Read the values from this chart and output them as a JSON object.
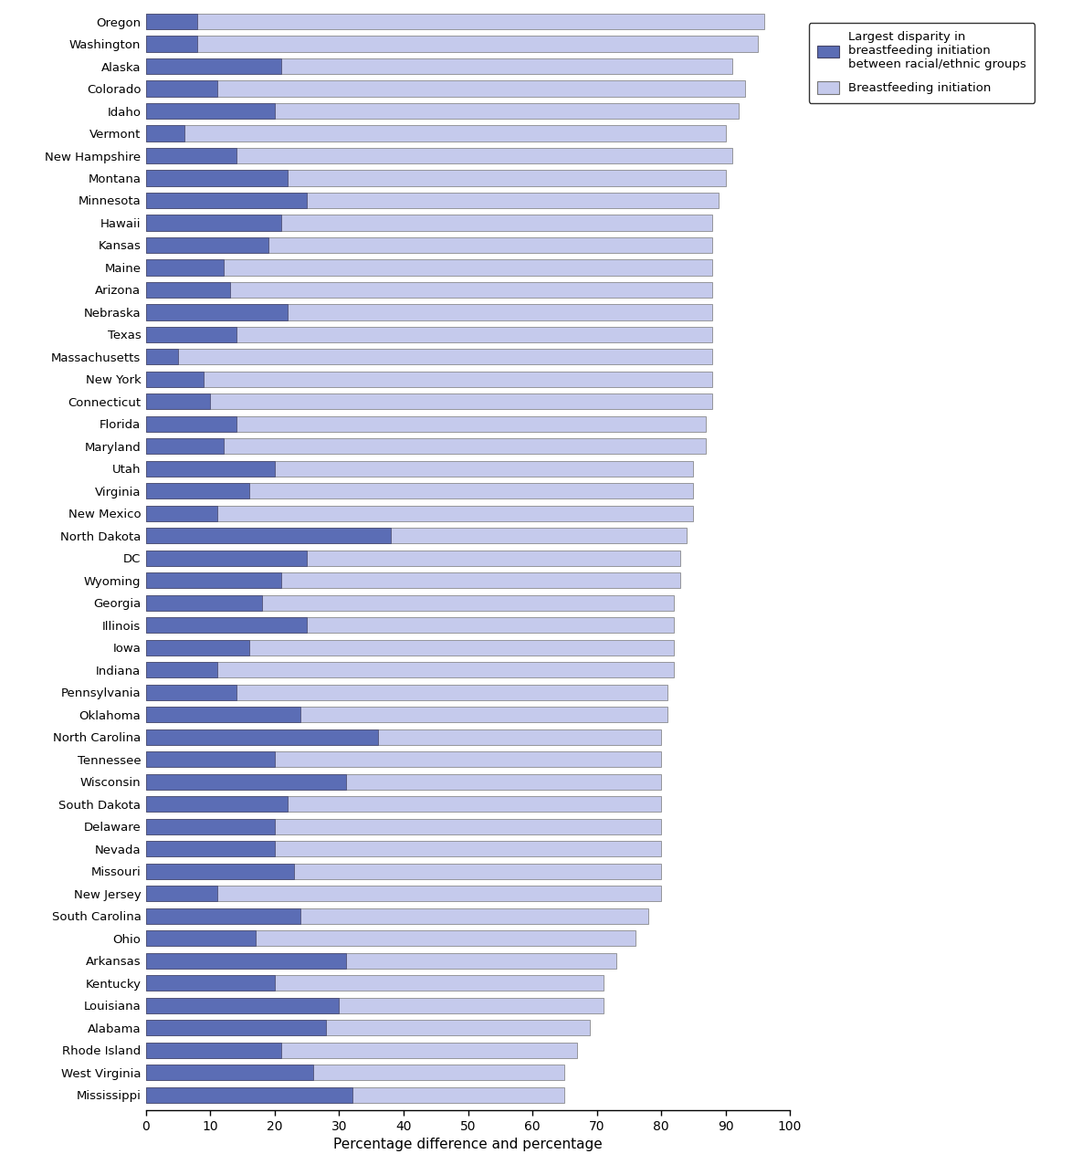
{
  "states": [
    "Oregon",
    "Washington",
    "Alaska",
    "Colorado",
    "Idaho",
    "Vermont",
    "New Hampshire",
    "Montana",
    "Minnesota",
    "Hawaii",
    "Kansas",
    "Maine",
    "Arizona",
    "Nebraska",
    "Texas",
    "Massachusetts",
    "New York",
    "Connecticut",
    "Florida",
    "Maryland",
    "Utah",
    "Virginia",
    "New Mexico",
    "North Dakota",
    "DC",
    "Wyoming",
    "Georgia",
    "Illinois",
    "Iowa",
    "Indiana",
    "Pennsylvania",
    "Oklahoma",
    "North Carolina",
    "Tennessee",
    "Wisconsin",
    "South Dakota",
    "Delaware",
    "Nevada",
    "Missouri",
    "New Jersey",
    "South Carolina",
    "Ohio",
    "Arkansas",
    "Kentucky",
    "Louisiana",
    "Alabama",
    "Rhode Island",
    "West Virginia",
    "Mississippi"
  ],
  "breastfeeding_initiation": [
    96,
    95,
    91,
    93,
    92,
    90,
    91,
    90,
    89,
    88,
    88,
    88,
    88,
    88,
    88,
    88,
    88,
    88,
    87,
    87,
    85,
    85,
    85,
    84,
    83,
    83,
    82,
    82,
    82,
    82,
    81,
    81,
    80,
    80,
    80,
    80,
    80,
    80,
    80,
    80,
    78,
    76,
    73,
    71,
    71,
    69,
    67,
    65,
    65
  ],
  "disparity": [
    8,
    8,
    21,
    11,
    20,
    6,
    14,
    22,
    25,
    21,
    19,
    12,
    13,
    22,
    14,
    5,
    9,
    10,
    14,
    12,
    20,
    16,
    11,
    38,
    25,
    21,
    18,
    25,
    16,
    11,
    14,
    24,
    36,
    20,
    31,
    22,
    20,
    20,
    23,
    11,
    24,
    17,
    31,
    20,
    30,
    28,
    21,
    26,
    32
  ],
  "bar_color_disparity": "#5B6DB5",
  "bar_color_initiation": "#C5CAEC",
  "xlabel": "Percentage difference and percentage",
  "xlim": [
    0,
    100
  ],
  "xticks": [
    0,
    10,
    20,
    30,
    40,
    50,
    60,
    70,
    80,
    90,
    100
  ],
  "legend_disparity_label": "Largest disparity in\nbreastfeeding initiation\nbetween racial/ethnic groups",
  "legend_initiation_label": "Breastfeeding initiation",
  "background_color": "#ffffff",
  "bar_height": 0.7
}
